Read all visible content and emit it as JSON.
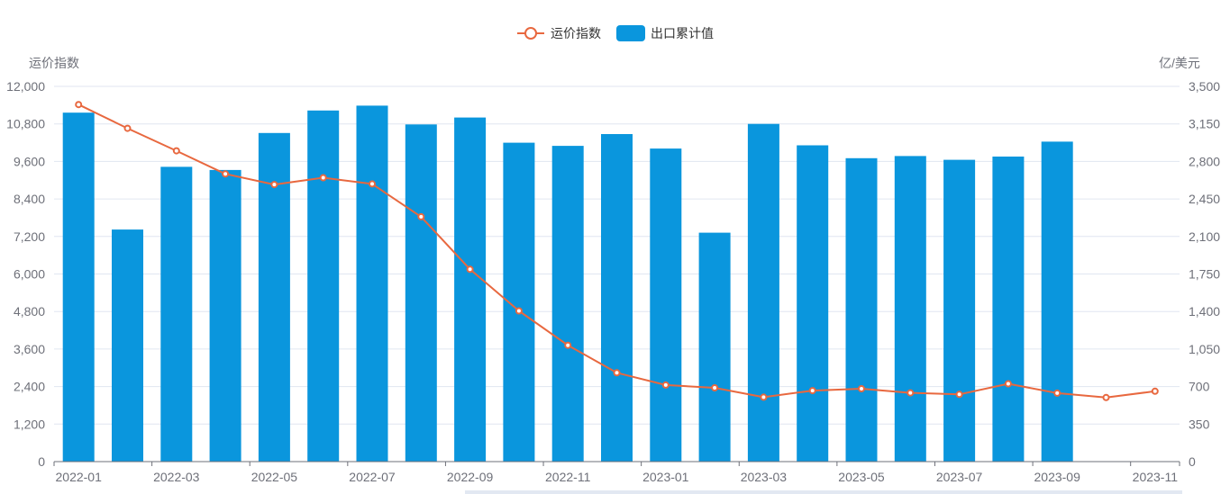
{
  "chart_data": {
    "type": "bar+line",
    "legend": [
      {
        "name": "运价指数",
        "kind": "line",
        "color": "#e8683f"
      },
      {
        "name": "出口累计值",
        "kind": "bar",
        "color": "#0a96dd"
      }
    ],
    "legend_position": "top-center",
    "y_left": {
      "label": "运价指数",
      "min": 0,
      "max": 12000,
      "ticks": [
        "0",
        "1,200",
        "2,400",
        "3,600",
        "4,800",
        "6,000",
        "7,200",
        "8,400",
        "9,600",
        "10,800",
        "12,000"
      ]
    },
    "y_right": {
      "label": "亿/美元",
      "min": 0,
      "max": 3500,
      "ticks": [
        "0",
        "350",
        "700",
        "1,050",
        "1,400",
        "1,750",
        "2,100",
        "2,450",
        "2,800",
        "3,150",
        "3,500"
      ]
    },
    "grid": true,
    "categories": [
      "2022-01",
      "2022-02",
      "2022-03",
      "2022-04",
      "2022-05",
      "2022-06",
      "2022-07",
      "2022-08",
      "2022-09",
      "2022-10",
      "2022-11",
      "2022-12",
      "2023-01",
      "2023-02",
      "2023-03",
      "2023-04",
      "2023-05",
      "2023-06",
      "2023-07",
      "2023-08",
      "2023-09",
      "2023-10",
      "2023-11"
    ],
    "x_tick_labels": [
      "2022-01",
      "2022-03",
      "2022-05",
      "2022-07",
      "2022-09",
      "2022-11",
      "2023-01",
      "2023-03",
      "2023-05",
      "2023-07",
      "2023-09",
      "2023-11"
    ],
    "series": [
      {
        "name": "出口累计值",
        "type": "bar",
        "axis": "right",
        "color": "#0a96dd",
        "values": [
          3255,
          2165,
          2750,
          2720,
          3065,
          3275,
          3320,
          3145,
          3210,
          2975,
          2945,
          3055,
          2920,
          2135,
          3150,
          2950,
          2830,
          2850,
          2815,
          2845,
          2985,
          null,
          null
        ]
      },
      {
        "name": "运价指数",
        "type": "line",
        "axis": "left",
        "color": "#e8683f",
        "values": [
          11420,
          10660,
          9940,
          9200,
          8860,
          9080,
          8880,
          7830,
          6150,
          4820,
          3720,
          2840,
          2450,
          2360,
          2060,
          2270,
          2330,
          2200,
          2150,
          2490,
          2190,
          2050,
          2250
        ]
      }
    ]
  }
}
